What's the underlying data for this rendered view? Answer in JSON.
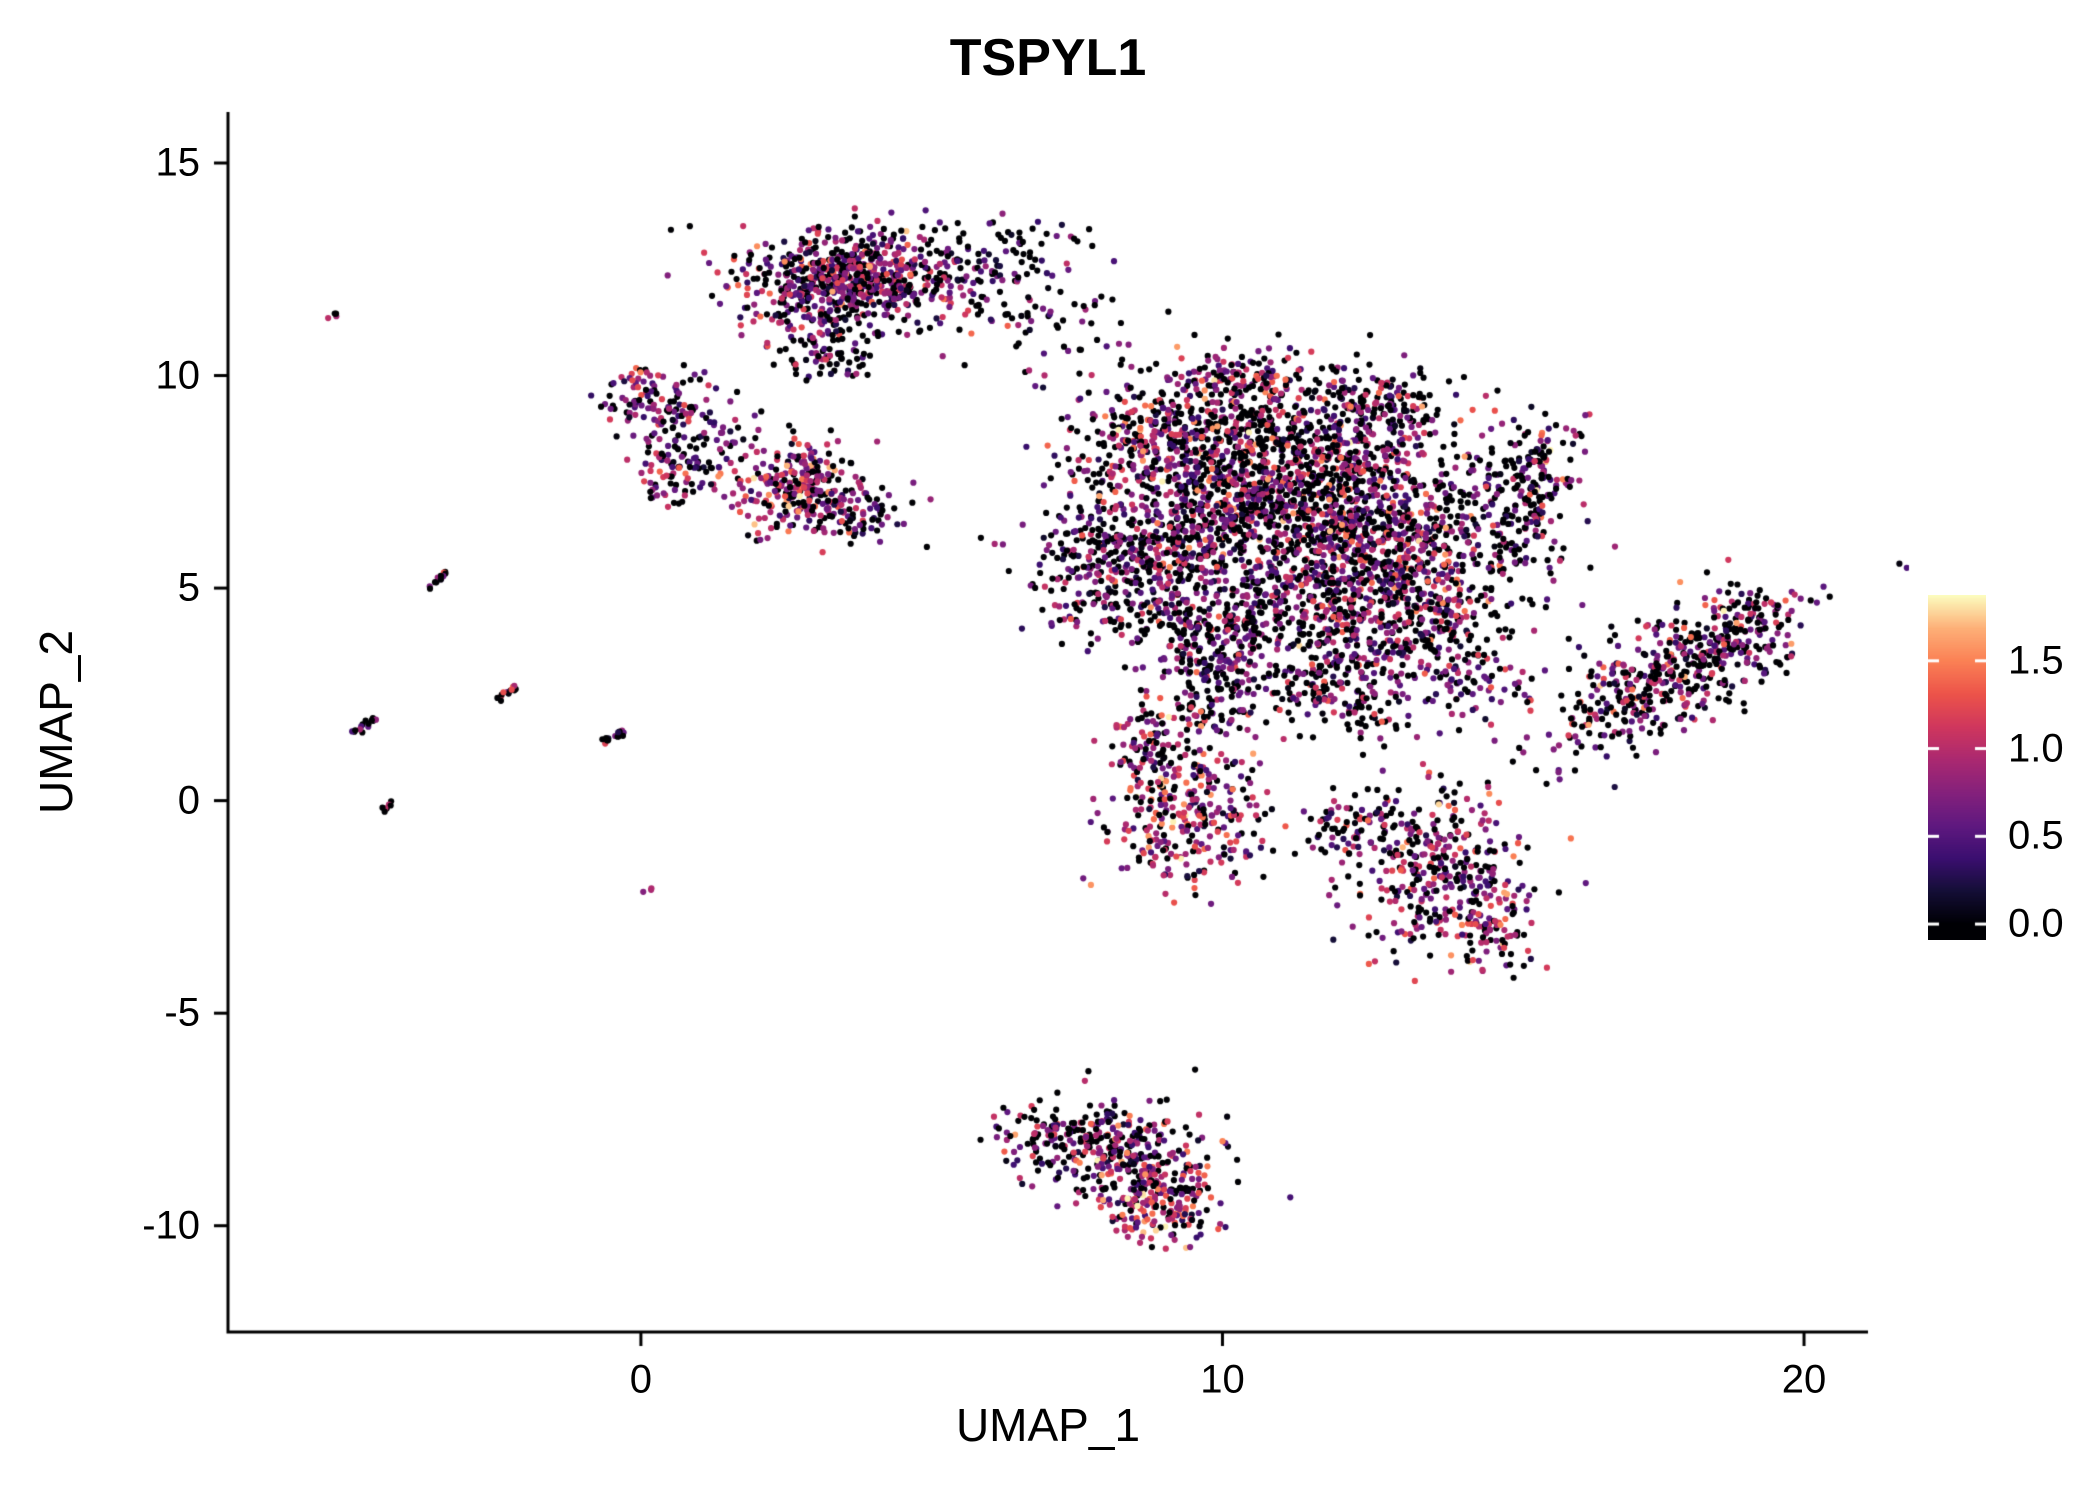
{
  "chart_data": {
    "type": "scatter",
    "title": "TSPYL1",
    "xlabel": "UMAP_1",
    "ylabel": "UMAP_2",
    "xlim": [
      -7.1,
      21.1
    ],
    "ylim": [
      -12.5,
      16.2
    ],
    "x_ticks": [
      0,
      10,
      20
    ],
    "y_ticks": [
      15,
      10,
      5,
      0,
      -5,
      -10
    ],
    "legend_ticks": [
      "1.5",
      "1.0",
      "0.5",
      "0.0"
    ],
    "grid": false,
    "legend_position": "right",
    "point_radius_px": 3.1,
    "color_scale": {
      "name": "magma",
      "max": 1.875,
      "bar_min": -0.085,
      "bar_max": 1.875,
      "stops": [
        [
          0.0,
          0,
          0,
          4
        ],
        [
          0.1,
          20,
          14,
          54
        ],
        [
          0.2,
          59,
          15,
          112
        ],
        [
          0.3,
          96,
          25,
          128
        ],
        [
          0.4,
          133,
          33,
          124
        ],
        [
          0.5,
          171,
          41,
          113
        ],
        [
          0.6,
          208,
          55,
          94
        ],
        [
          0.7,
          237,
          84,
          74
        ],
        [
          0.8,
          251,
          129,
          85
        ],
        [
          0.9,
          254,
          176,
          120
        ],
        [
          1.0,
          252,
          253,
          191
        ]
      ]
    },
    "seed": 42,
    "clusters": [
      {
        "n": 650,
        "cx": 3.6,
        "cy": 12.3,
        "sx": 1.0,
        "sy": 0.55,
        "p0": 0.3,
        "mu": 0.78,
        "sig": 0.36
      },
      {
        "n": 120,
        "cx": 3.3,
        "cy": 10.9,
        "sx": 0.5,
        "sy": 0.6,
        "p0": 0.45,
        "mu": 0.6,
        "sig": 0.3
      },
      {
        "n": 90,
        "cx": 6.0,
        "cy": 12.2,
        "sx": 0.8,
        "sy": 0.7,
        "p0": 0.5,
        "mu": 0.55,
        "sig": 0.3
      },
      {
        "n": 25,
        "cx": 6.7,
        "cy": 13.2,
        "sx": 0.5,
        "sy": 0.3,
        "p0": 0.5,
        "mu": 0.5,
        "sig": 0.3
      },
      {
        "n": 110,
        "cx": 0.35,
        "cy": 9.35,
        "sx": 0.45,
        "sy": 0.4,
        "p0": 0.35,
        "mu": 0.7,
        "sig": 0.35
      },
      {
        "n": 90,
        "cx": 0.6,
        "cy": 7.9,
        "sx": 0.35,
        "sy": 0.45,
        "p0": 0.35,
        "mu": 0.7,
        "sig": 0.35
      },
      {
        "n": 40,
        "cx": 1.4,
        "cy": 8.6,
        "sx": 0.5,
        "sy": 0.5,
        "p0": 0.5,
        "mu": 0.6,
        "sig": 0.3
      },
      {
        "n": 260,
        "cx": 2.7,
        "cy": 7.35,
        "sx": 0.55,
        "sy": 0.5,
        "p0": 0.22,
        "mu": 0.95,
        "sig": 0.45
      },
      {
        "n": 70,
        "cx": 3.7,
        "cy": 6.75,
        "sx": 0.5,
        "sy": 0.3,
        "p0": 0.4,
        "mu": 0.7,
        "sig": 0.35
      },
      {
        "n": 420,
        "cx": 9.3,
        "cy": 8.6,
        "sx": 0.9,
        "sy": 0.8,
        "p0": 0.4,
        "mu": 0.8,
        "sig": 0.4
      },
      {
        "n": 520,
        "cx": 11.6,
        "cy": 8.4,
        "sx": 1.1,
        "sy": 0.9,
        "p0": 0.42,
        "mu": 0.8,
        "sig": 0.4
      },
      {
        "n": 650,
        "cx": 10.4,
        "cy": 6.6,
        "sx": 1.3,
        "sy": 1.0,
        "p0": 0.45,
        "mu": 0.75,
        "sig": 0.38
      },
      {
        "n": 600,
        "cx": 12.6,
        "cy": 6.2,
        "sx": 1.0,
        "sy": 1.0,
        "p0": 0.35,
        "mu": 0.85,
        "sig": 0.4
      },
      {
        "n": 380,
        "cx": 8.3,
        "cy": 5.6,
        "sx": 0.9,
        "sy": 0.9,
        "p0": 0.45,
        "mu": 0.7,
        "sig": 0.35
      },
      {
        "n": 420,
        "cx": 10.8,
        "cy": 4.2,
        "sx": 1.2,
        "sy": 0.8,
        "p0": 0.5,
        "mu": 0.7,
        "sig": 0.35
      },
      {
        "n": 280,
        "cx": 13.3,
        "cy": 4.4,
        "sx": 0.8,
        "sy": 0.7,
        "p0": 0.4,
        "mu": 0.8,
        "sig": 0.4
      },
      {
        "n": 160,
        "cx": 14.8,
        "cy": 6.3,
        "sx": 0.7,
        "sy": 0.9,
        "p0": 0.55,
        "mu": 0.6,
        "sig": 0.3
      },
      {
        "n": 130,
        "cx": 15.4,
        "cy": 7.9,
        "sx": 0.45,
        "sy": 0.7,
        "p0": 0.45,
        "mu": 0.75,
        "sig": 0.4
      },
      {
        "n": 90,
        "cx": 10.3,
        "cy": 9.9,
        "sx": 0.5,
        "sy": 0.35,
        "p0": 0.4,
        "mu": 0.8,
        "sig": 0.4
      },
      {
        "n": 90,
        "cx": 12.9,
        "cy": 9.4,
        "sx": 0.5,
        "sy": 0.4,
        "p0": 0.45,
        "mu": 0.7,
        "sig": 0.35
      },
      {
        "n": 160,
        "cx": 9.9,
        "cy": 2.9,
        "sx": 0.6,
        "sy": 0.7,
        "p0": 0.5,
        "mu": 0.7,
        "sig": 0.35
      },
      {
        "n": 170,
        "cx": 12.2,
        "cy": 2.6,
        "sx": 0.7,
        "sy": 0.6,
        "p0": 0.45,
        "mu": 0.75,
        "sig": 0.38
      },
      {
        "n": 80,
        "cx": 14.3,
        "cy": 2.9,
        "sx": 0.5,
        "sy": 0.5,
        "p0": 0.5,
        "mu": 0.65,
        "sig": 0.3
      },
      {
        "n": 40,
        "cx": 7.3,
        "cy": 11.2,
        "sx": 0.7,
        "sy": 0.8,
        "p0": 0.5,
        "mu": 0.6,
        "sig": 0.3
      },
      {
        "n": 300,
        "cx": 9.4,
        "cy": -0.3,
        "sx": 0.7,
        "sy": 0.9,
        "p0": 0.28,
        "mu": 0.95,
        "sig": 0.45
      },
      {
        "n": 80,
        "cx": 8.9,
        "cy": 1.3,
        "sx": 0.4,
        "sy": 0.5,
        "p0": 0.4,
        "mu": 0.75,
        "sig": 0.35
      },
      {
        "n": 330,
        "cx": 13.7,
        "cy": -1.6,
        "sx": 0.8,
        "sy": 0.9,
        "p0": 0.35,
        "mu": 0.85,
        "sig": 0.4
      },
      {
        "n": 90,
        "cx": 14.6,
        "cy": -3.0,
        "sx": 0.4,
        "sy": 0.5,
        "p0": 0.35,
        "mu": 0.85,
        "sig": 0.4
      },
      {
        "n": 70,
        "cx": 12.3,
        "cy": -0.6,
        "sx": 0.5,
        "sy": 0.4,
        "p0": 0.5,
        "mu": 0.65,
        "sig": 0.3
      },
      {
        "n": 480,
        "cx": 17.7,
        "cy": 3.0,
        "sx": 1.3,
        "sy": 0.55,
        "rot": 41,
        "p0": 0.45,
        "mu": 0.75,
        "sig": 0.38
      },
      {
        "n": 60,
        "cx": 19.2,
        "cy": 4.0,
        "sx": 0.4,
        "sy": 0.5,
        "p0": 0.45,
        "mu": 0.75,
        "sig": 0.35
      },
      {
        "n": 150,
        "cx": 7.3,
        "cy": -7.9,
        "sx": 0.6,
        "sy": 0.5,
        "p0": 0.45,
        "mu": 0.7,
        "sig": 0.35
      },
      {
        "n": 220,
        "cx": 8.4,
        "cy": -8.4,
        "sx": 0.7,
        "sy": 0.6,
        "p0": 0.4,
        "mu": 0.8,
        "sig": 0.4
      },
      {
        "n": 170,
        "cx": 8.9,
        "cy": -9.5,
        "sx": 0.5,
        "sy": 0.5,
        "p0": 0.28,
        "mu": 1.0,
        "sig": 0.45
      },
      {
        "type": "streak",
        "n": 4,
        "x1": -5.35,
        "y1": 11.3,
        "x2": -5.2,
        "y2": 11.5,
        "jit": 0.04,
        "p0": 0.4,
        "mu": 0.7,
        "sig": 0.4
      },
      {
        "type": "streak",
        "n": 14,
        "x1": -3.65,
        "y1": 5.0,
        "x2": -3.35,
        "y2": 5.35,
        "jit": 0.04,
        "p0": 0.4,
        "mu": 0.7,
        "sig": 0.4
      },
      {
        "type": "streak",
        "n": 14,
        "x1": -4.9,
        "y1": 1.6,
        "x2": -4.55,
        "y2": 1.95,
        "jit": 0.04,
        "p0": 0.4,
        "mu": 0.7,
        "sig": 0.4
      },
      {
        "type": "streak",
        "n": 14,
        "x1": -2.5,
        "y1": 2.35,
        "x2": -2.15,
        "y2": 2.7,
        "jit": 0.04,
        "p0": 0.3,
        "mu": 0.9,
        "sig": 0.5
      },
      {
        "type": "streak",
        "n": 16,
        "x1": -0.65,
        "y1": 1.35,
        "x2": -0.3,
        "y2": 1.65,
        "jit": 0.04,
        "p0": 0.45,
        "mu": 0.65,
        "sig": 0.35
      },
      {
        "type": "streak",
        "n": 7,
        "x1": -4.4,
        "y1": -0.25,
        "x2": -4.3,
        "y2": 0.0,
        "jit": 0.04,
        "p0": 0.4,
        "mu": 0.7,
        "sig": 0.4
      },
      {
        "type": "streak",
        "n": 3,
        "x1": 0.1,
        "y1": -2.15,
        "x2": 0.2,
        "y2": -2.05,
        "jit": 0.03,
        "p0": 0.3,
        "mu": 0.7,
        "sig": 0.4
      }
    ]
  }
}
